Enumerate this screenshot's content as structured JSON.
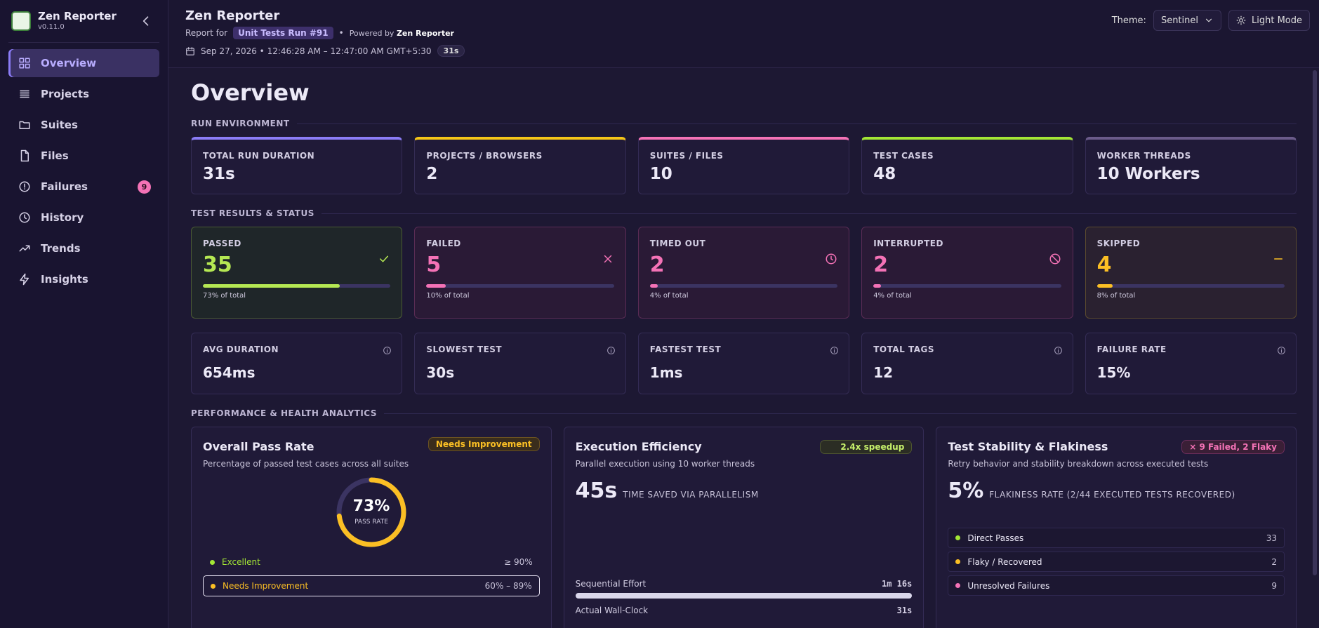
{
  "app": {
    "name": "Zen Reporter",
    "version": "v0.11.0"
  },
  "nav": [
    {
      "label": "Overview"
    },
    {
      "label": "Projects"
    },
    {
      "label": "Suites"
    },
    {
      "label": "Files"
    },
    {
      "label": "Failures",
      "badge": 9
    },
    {
      "label": "History"
    },
    {
      "label": "Trends"
    },
    {
      "label": "Insights"
    }
  ],
  "header": {
    "title": "Zen Reporter",
    "report_for": "Report for",
    "run": "Unit Tests Run #91",
    "powered_by": "Powered by",
    "powered_name": "Zen Reporter",
    "date": "Sep 27, 2026 • 12:46:28 AM – 12:47:00 AM GMT+5:30",
    "duration": "31s",
    "theme_label": "Theme:",
    "theme": "Sentinel",
    "mode": "Light Mode"
  },
  "page_title": "Overview",
  "sections": [
    "RUN ENVIRONMENT",
    "TEST RESULTS & STATUS",
    "PERFORMANCE & HEALTH ANALYTICS"
  ],
  "environment": [
    {
      "label": "TOTAL RUN DURATION",
      "value": "31s"
    },
    {
      "label": "PROJECTS / BROWSERS",
      "value": 2
    },
    {
      "label": "SUITES / FILES",
      "value": 10
    },
    {
      "label": "TEST CASES",
      "value": 48
    },
    {
      "label": "WORKER THREADS",
      "value": "10 Workers"
    }
  ],
  "results": [
    {
      "label": "PASSED",
      "value": 35,
      "note": "73% of total"
    },
    {
      "label": "FAILED",
      "value": 5,
      "note": "10% of total"
    },
    {
      "label": "TIMED OUT",
      "value": 2,
      "note": "4% of total"
    },
    {
      "label": "INTERRUPTED",
      "value": 2,
      "note": "4% of total"
    },
    {
      "label": "SKIPPED",
      "value": 4,
      "note": "8% of total"
    }
  ],
  "metrics": [
    {
      "label": "AVG DURATION",
      "value": "654ms"
    },
    {
      "label": "SLOWEST TEST",
      "value": "30s"
    },
    {
      "label": "FASTEST TEST",
      "value": "1ms"
    },
    {
      "label": "TOTAL TAGS",
      "value": 12
    },
    {
      "label": "FAILURE RATE",
      "value": "15%"
    }
  ],
  "pass_rate": {
    "title": "Overall Pass Rate",
    "badge": "Needs Improvement",
    "subtitle": "Percentage of passed test cases across all suites",
    "value": {
      "value": 73,
      "label": "73%"
    },
    "caption": "PASS RATE",
    "legend": [
      {
        "label": "Excellent",
        "range": "≥ 90%"
      },
      {
        "label": "Needs Improvement",
        "range": "60% – 89%"
      }
    ]
  },
  "efficiency": {
    "title": "Execution Efficiency",
    "badge": "2.4x speedup",
    "subtitle": "Parallel execution using 10 worker threads",
    "big": "45s",
    "big_caption": "TIME SAVED VIA PARALLELISM",
    "rows": [
      {
        "label": "Sequential Effort",
        "value": "1m 16s"
      },
      {
        "label": "Actual Wall-Clock",
        "value": "31s"
      }
    ]
  },
  "stability": {
    "title": "Test Stability & Flakiness",
    "badge": "9 Failed, 2 Flaky",
    "subtitle": "Retry behavior and stability breakdown across executed tests",
    "big": "5%",
    "big_caption": "FLAKINESS RATE (2/44 EXECUTED TESTS RECOVERED)",
    "rows": [
      {
        "label": "Direct Passes",
        "value": 33
      },
      {
        "label": "Flaky / Recovered",
        "value": 2
      },
      {
        "label": "Unresolved Failures",
        "value": 9
      }
    ]
  }
}
